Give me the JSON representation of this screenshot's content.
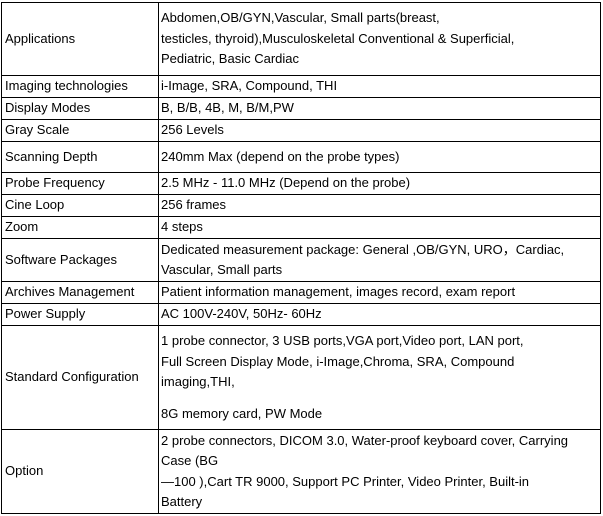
{
  "table": {
    "rows": [
      [
        "Applications",
        [
          "Abdomen,OB/GYN,Vascular, Small parts(breast,",
          "testicles, thyroid),Musculoskeletal Conventional & Superficial,",
          "Pediatric, Basic Cardiac"
        ]
      ],
      [
        "Imaging technologies",
        [
          "i-Image, SRA, Compound, THI"
        ]
      ],
      [
        "Display Modes",
        [
          "B, B/B, 4B, M, B/M,PW"
        ]
      ],
      [
        "Gray Scale",
        [
          "256 Levels"
        ]
      ],
      [
        "Scanning Depth",
        [
          "240mm Max (depend on the probe types)"
        ]
      ],
      [
        "Probe Frequency",
        [
          "2.5 MHz - 11.0 MHz (Depend on the probe)"
        ]
      ],
      [
        "Cine Loop",
        [
          "256 frames"
        ]
      ],
      [
        "Zoom",
        [
          "4 steps"
        ]
      ],
      [
        "Software Packages",
        [
          "Dedicated measurement package: General ,OB/GYN, URO，Cardiac,",
          "Vascular, Small parts"
        ]
      ],
      [
        "Archives Management",
        [
          "Patient information management, images record, exam report"
        ]
      ],
      [
        "Power Supply",
        [
          "AC 100V-240V, 50Hz- 60Hz"
        ]
      ],
      [
        "Standard Configuration",
        [
          "1 probe connector, 3 USB ports,VGA port,Video port, LAN port,",
          "Full Screen Display Mode, i-Image,Chroma, SRA, Compound",
          "imaging,THI,",
          "8G memory card, PW Mode"
        ]
      ],
      [
        "Option",
        [
          "2 probe connectors, DICOM 3.0, Water-proof keyboard cover, Carrying",
          "Case (BG",
          "—100 ),Cart TR 9000, Support PC Printer, Video Printer, Built-in",
          "Battery"
        ]
      ]
    ]
  }
}
